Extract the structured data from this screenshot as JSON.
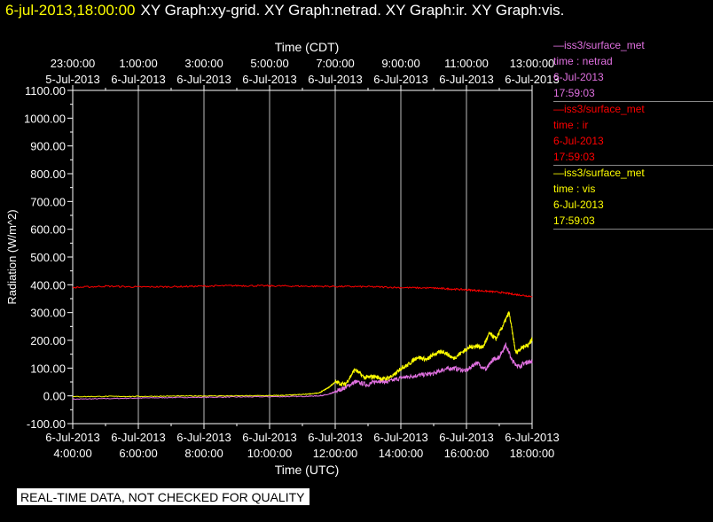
{
  "header": {
    "timestamp": "6-jul-2013,18:00:00",
    "titles": "XY Graph:xy-grid.  XY Graph:netrad.  XY Graph:ir.  XY Graph:vis."
  },
  "footer_text": "REAL-TIME DATA, NOT CHECKED FOR QUALITY",
  "legend": [
    {
      "source": "iss3/surface_met",
      "var": "time : netrad",
      "date": "6-Jul-2013",
      "time": "17:59:03",
      "color": "#e070e0"
    },
    {
      "source": "iss3/surface_met",
      "var": "time : ir",
      "date": "6-Jul-2013",
      "time": "17:59:03",
      "color": "#ff0000"
    },
    {
      "source": "iss3/surface_met",
      "var": "time : vis",
      "date": "6-Jul-2013",
      "time": "17:59:03",
      "color": "#ffff00"
    }
  ],
  "chart_data": {
    "type": "line",
    "xlabel": "Time (UTC)",
    "xlabel_top": "Time (CDT)",
    "ylabel": "Radiation  (W/m^2)",
    "ylim": [
      -100,
      1100
    ],
    "xlim_hours_utc": [
      4,
      18
    ],
    "grid": true,
    "yticks": [
      "-100.00",
      "0.00",
      "100.00",
      "200.00",
      "300.00",
      "400.00",
      "500.00",
      "600.00",
      "700.00",
      "800.00",
      "900.00",
      "1000.00",
      "1100.00"
    ],
    "xticks_bottom": [
      {
        "date": "6-Jul-2013",
        "time": "4:00:00"
      },
      {
        "date": "6-Jul-2013",
        "time": "6:00:00"
      },
      {
        "date": "6-Jul-2013",
        "time": "8:00:00"
      },
      {
        "date": "6-Jul-2013",
        "time": "10:00:00"
      },
      {
        "date": "6-Jul-2013",
        "time": "12:00:00"
      },
      {
        "date": "6-Jul-2013",
        "time": "14:00:00"
      },
      {
        "date": "6-Jul-2013",
        "time": "16:00:00"
      },
      {
        "date": "6-Jul-2013",
        "time": "18:00:00"
      }
    ],
    "xticks_top": [
      {
        "time": "23:00:00",
        "date": "5-Jul-2013"
      },
      {
        "time": "1:00:00",
        "date": "6-Jul-2013"
      },
      {
        "time": "3:00:00",
        "date": "6-Jul-2013"
      },
      {
        "time": "5:00:00",
        "date": "6-Jul-2013"
      },
      {
        "time": "7:00:00",
        "date": "6-Jul-2013"
      },
      {
        "time": "9:00:00",
        "date": "6-Jul-2013"
      },
      {
        "time": "11:00:00",
        "date": "6-Jul-2013"
      },
      {
        "time": "13:00:00",
        "date": "6-Jul-2013"
      }
    ],
    "series": [
      {
        "name": "time : netrad",
        "color": "#e070e0",
        "x": [
          4,
          5,
          6,
          7,
          8,
          9,
          10,
          11,
          11.5,
          11.8,
          12,
          12.3,
          12.6,
          13,
          13.3,
          13.6,
          14,
          14.3,
          14.6,
          15,
          15.3,
          15.6,
          16,
          16.3,
          16.6,
          16.8,
          17,
          17.2,
          17.4,
          17.6,
          17.8,
          18
        ],
        "y": [
          -12,
          -10,
          -8,
          -6,
          -5,
          -4,
          -3,
          -2,
          0,
          5,
          15,
          30,
          50,
          40,
          55,
          50,
          65,
          70,
          75,
          80,
          95,
          100,
          90,
          120,
          95,
          130,
          140,
          185,
          125,
          105,
          120,
          125
        ]
      },
      {
        "name": "time : ir",
        "color": "#ff0000",
        "x": [
          4,
          5,
          6,
          7,
          8,
          9,
          10,
          11,
          12,
          13,
          14,
          15,
          15.5,
          16,
          16.5,
          17,
          17.5,
          18
        ],
        "y": [
          390,
          395,
          392,
          393,
          395,
          397,
          396,
          395,
          394,
          393,
          390,
          388,
          385,
          382,
          378,
          373,
          365,
          358
        ]
      },
      {
        "name": "time : vis",
        "color": "#ffff00",
        "x": [
          4,
          5,
          6,
          7,
          8,
          9,
          10,
          10.5,
          11,
          11.5,
          11.8,
          12,
          12.3,
          12.6,
          12.9,
          13.2,
          13.5,
          13.8,
          14,
          14.2,
          14.5,
          14.8,
          15,
          15.3,
          15.6,
          15.9,
          16.1,
          16.3,
          16.5,
          16.7,
          16.9,
          17.1,
          17.3,
          17.5,
          17.7,
          17.9,
          18
        ],
        "y": [
          -3,
          -2,
          -2,
          -1,
          0,
          0,
          1,
          2,
          5,
          10,
          30,
          50,
          40,
          95,
          65,
          70,
          60,
          75,
          100,
          110,
          140,
          130,
          150,
          160,
          135,
          160,
          175,
          180,
          175,
          225,
          205,
          250,
          300,
          155,
          175,
          185,
          205
        ]
      }
    ]
  }
}
